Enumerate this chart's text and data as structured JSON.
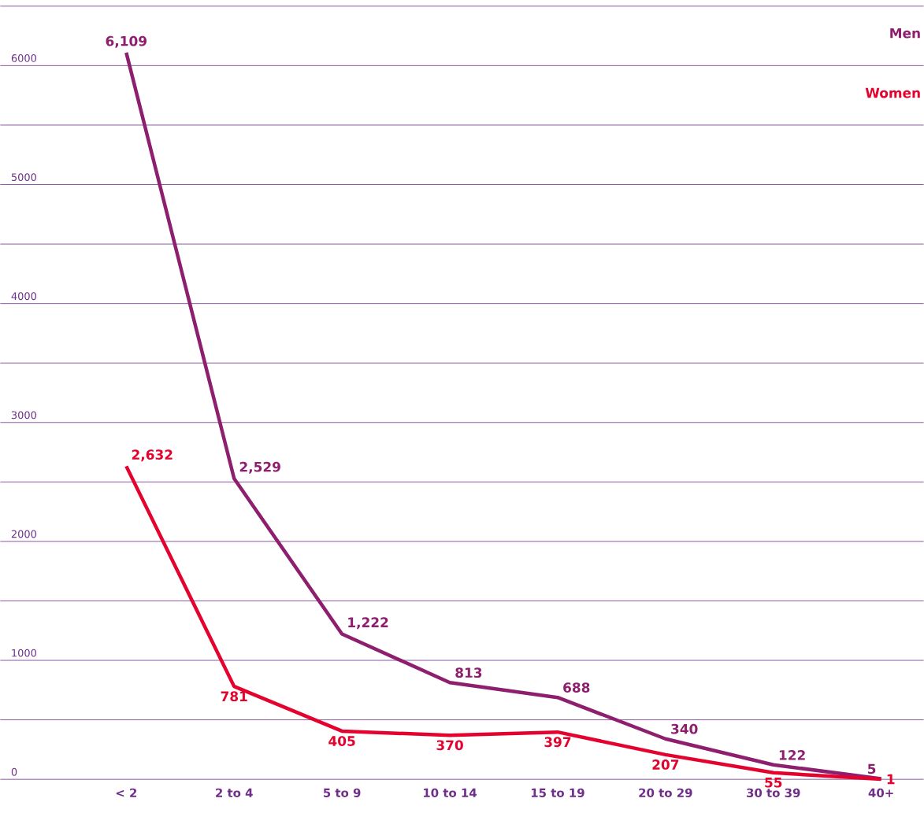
{
  "chart_data": {
    "type": "line",
    "categories": [
      "< 2",
      "2 to 4",
      "5 to 9",
      "10 to 14",
      "15 to 19",
      "20 to 29",
      "30 to 39",
      "40+"
    ],
    "series": [
      {
        "name": "Men",
        "color": "#8e1f6f",
        "values": [
          6109,
          2529,
          1222,
          813,
          688,
          340,
          122,
          5
        ],
        "value_labels": [
          "6,109",
          "2,529",
          "1,222",
          "813",
          "688",
          "340",
          "122",
          "5"
        ]
      },
      {
        "name": "Women",
        "color": "#e4032e",
        "values": [
          2632,
          781,
          405,
          370,
          397,
          207,
          55,
          1
        ],
        "value_labels": [
          "2,632",
          "781",
          "405",
          "370",
          "397",
          "207",
          "55",
          "1"
        ]
      }
    ],
    "ylim": [
      0,
      6500
    ],
    "yticks": [
      0,
      {
        "value": 500,
        "label": null
      },
      1000,
      {
        "value": 1500,
        "label": null
      },
      2000,
      {
        "value": 2500,
        "label": null
      },
      3000,
      {
        "value": 3500,
        "label": null
      },
      4000,
      {
        "value": 4500,
        "label": null
      },
      5000,
      {
        "value": 5500,
        "label": null
      },
      6000,
      {
        "value": 6500,
        "label": null
      }
    ],
    "grid": "y",
    "legend": "top right",
    "marker": "none",
    "line_style": "solid"
  }
}
